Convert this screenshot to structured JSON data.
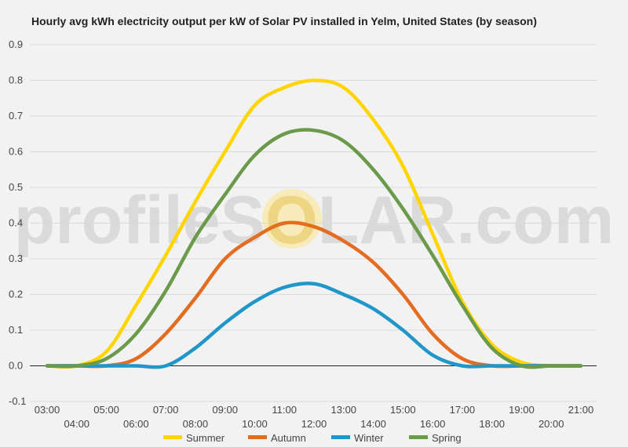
{
  "chart_data": {
    "type": "line",
    "title": "Hourly avg kWh electricity output per kW of Solar PV installed in Yelm, United States (by season)",
    "xlabel": "",
    "ylabel": "",
    "ylim": [
      -0.1,
      0.9
    ],
    "yticks": [
      "-0.1",
      "0.0",
      "0.1",
      "0.2",
      "0.3",
      "0.4",
      "0.5",
      "0.6",
      "0.7",
      "0.8",
      "0.9"
    ],
    "x": [
      "03:00",
      "04:00",
      "05:00",
      "06:00",
      "07:00",
      "08:00",
      "09:00",
      "10:00",
      "11:00",
      "12:00",
      "13:00",
      "14:00",
      "15:00",
      "16:00",
      "17:00",
      "18:00",
      "19:00",
      "20:00",
      "21:00"
    ],
    "grid": true,
    "legend": "bottom",
    "watermark": {
      "pre": "profileS",
      "o": "O",
      "post": "LAR.com"
    },
    "series": [
      {
        "name": "Summer",
        "color": "#ffd500",
        "values": [
          0.0,
          0.0,
          0.04,
          0.17,
          0.31,
          0.46,
          0.6,
          0.73,
          0.78,
          0.8,
          0.78,
          0.69,
          0.56,
          0.37,
          0.18,
          0.06,
          0.01,
          0.0,
          0.0
        ]
      },
      {
        "name": "Autumn",
        "color": "#e46c20",
        "values": [
          0.0,
          0.0,
          0.0,
          0.02,
          0.09,
          0.19,
          0.3,
          0.36,
          0.4,
          0.39,
          0.35,
          0.29,
          0.2,
          0.09,
          0.02,
          0.0,
          0.0,
          0.0,
          0.0
        ]
      },
      {
        "name": "Winter",
        "color": "#2196c8",
        "values": [
          0.0,
          0.0,
          0.0,
          0.0,
          0.0,
          0.05,
          0.12,
          0.18,
          0.22,
          0.23,
          0.2,
          0.16,
          0.1,
          0.03,
          0.0,
          0.0,
          0.0,
          0.0,
          0.0
        ]
      },
      {
        "name": "Spring",
        "color": "#6b9a4a",
        "values": [
          0.0,
          0.0,
          0.02,
          0.09,
          0.21,
          0.36,
          0.48,
          0.59,
          0.65,
          0.66,
          0.63,
          0.55,
          0.44,
          0.31,
          0.17,
          0.05,
          0.0,
          0.0,
          0.0
        ]
      }
    ]
  }
}
